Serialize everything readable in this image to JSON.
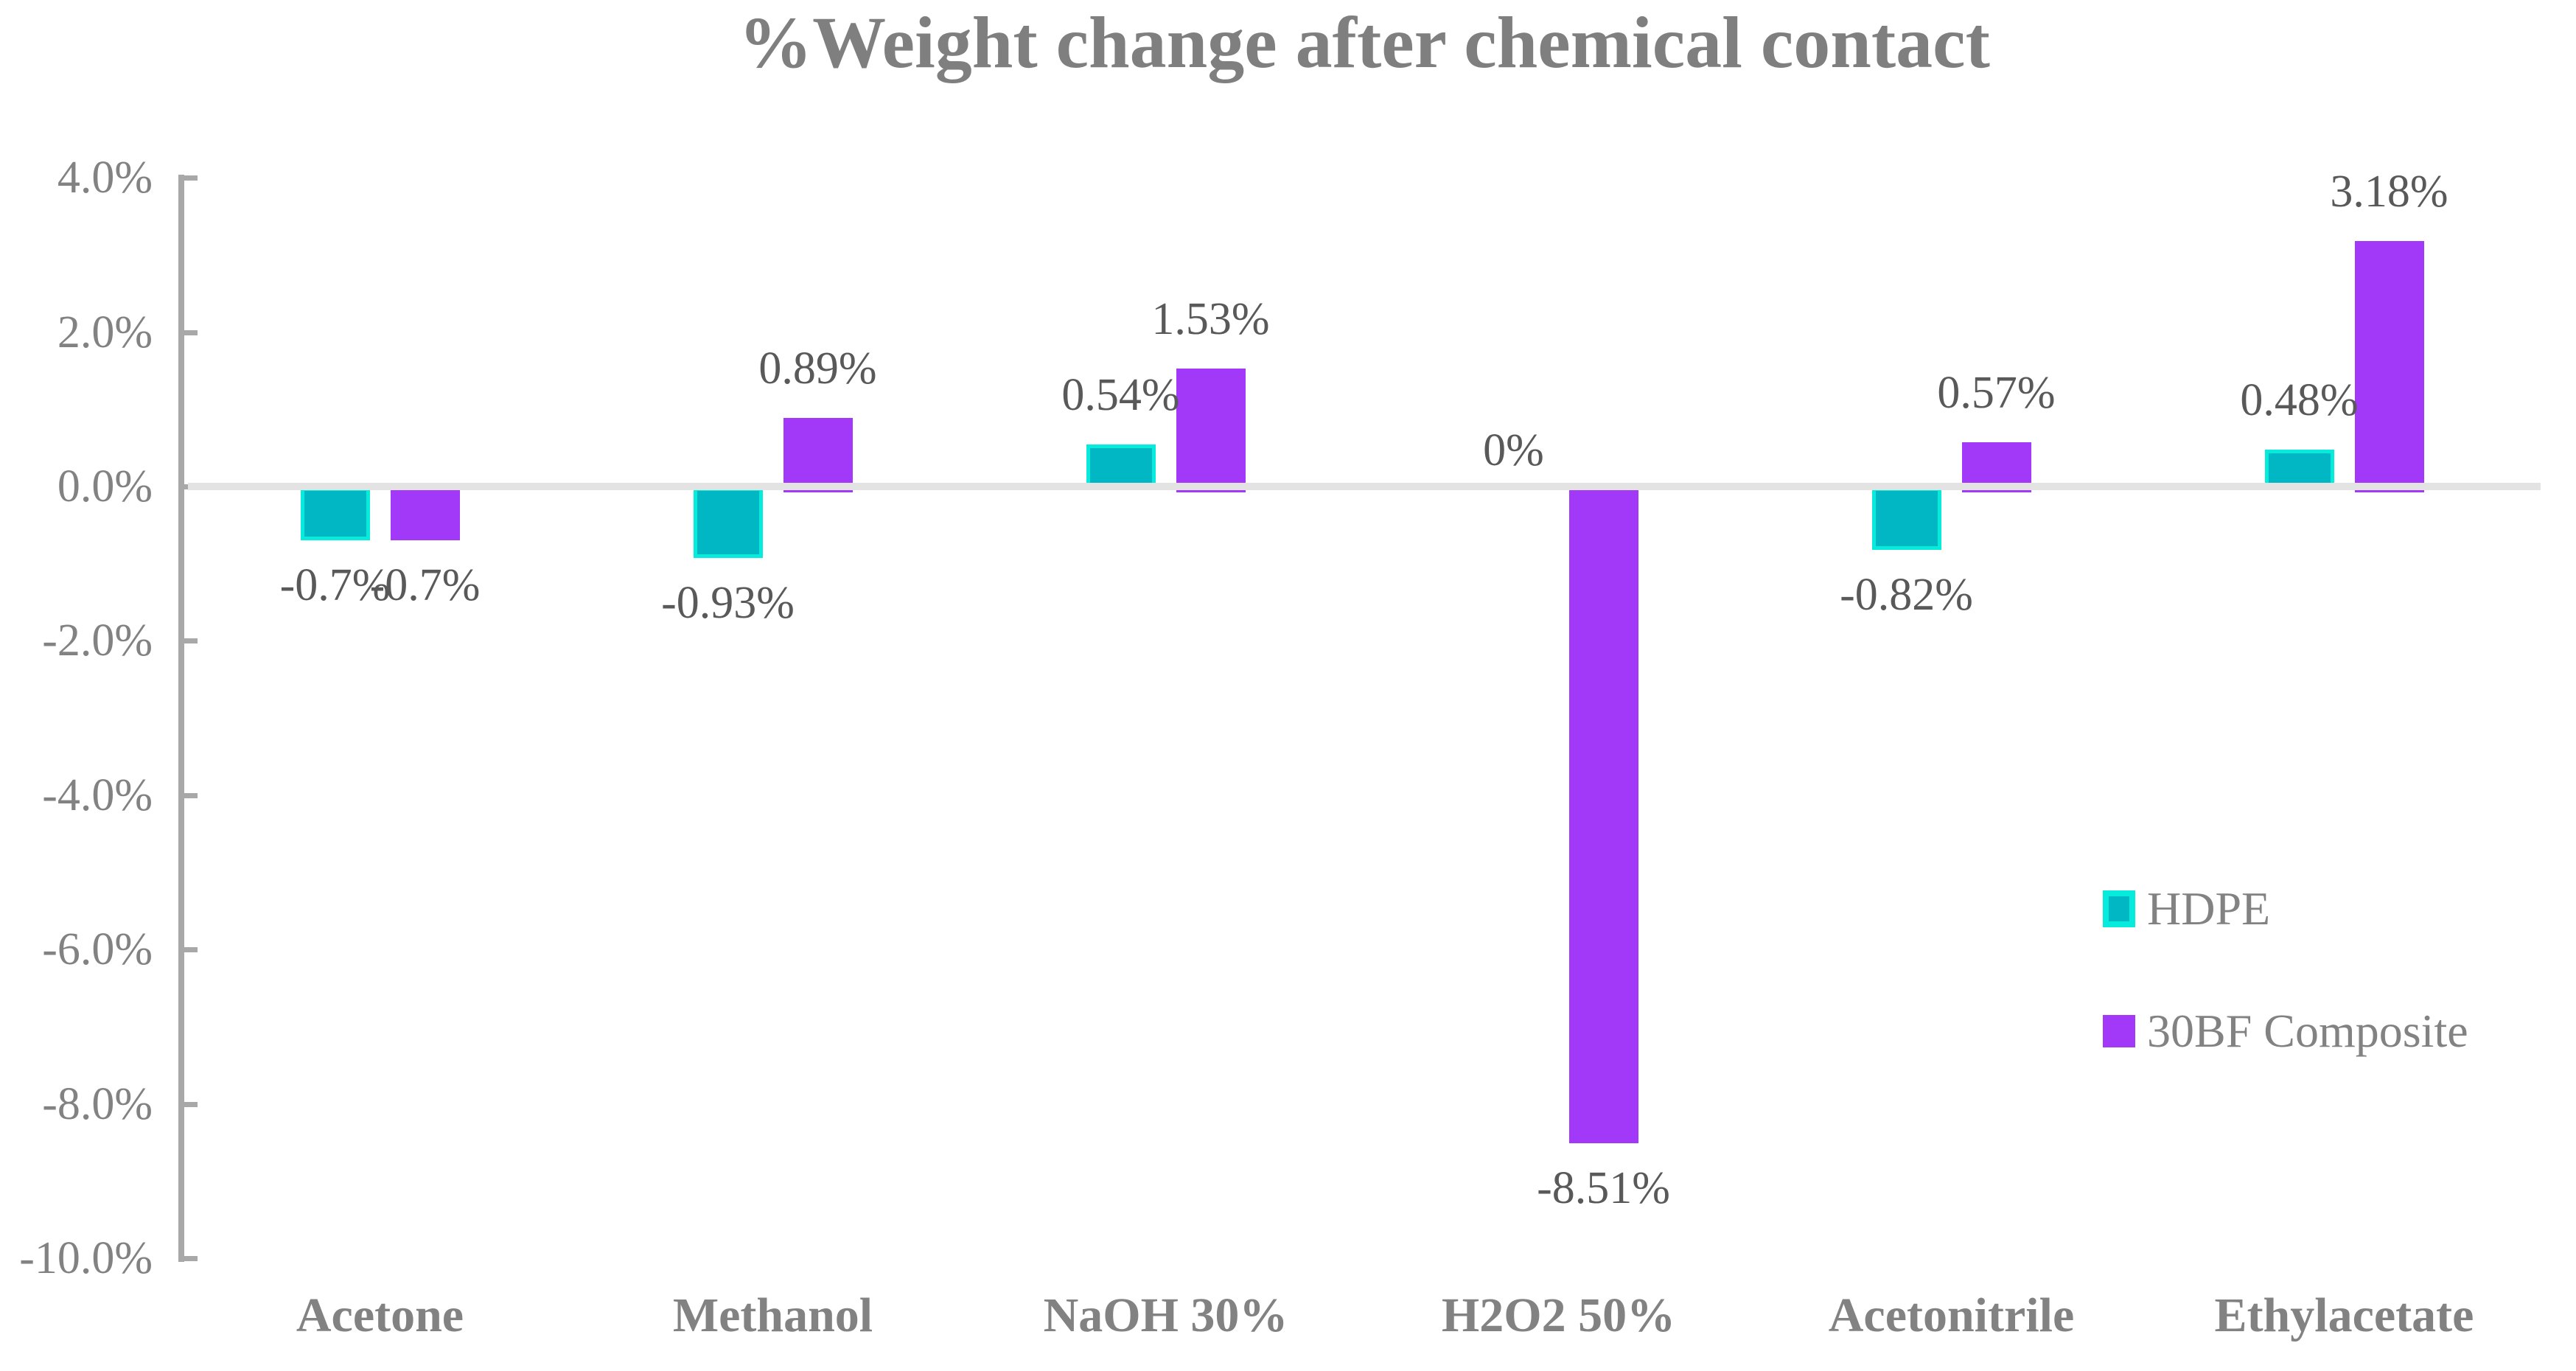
{
  "title": "%Weight change after chemical contact",
  "colors": {
    "hdpe_fill": "#00B7C3",
    "hdpe_border": "#06EBDC",
    "composite_fill": "#A238F8",
    "zero_gridline": "#E3E3E3",
    "axis": "#A8A8A8",
    "title_text": "#7F7F7F",
    "axis_text": "#828282",
    "data_label_text": "#595959"
  },
  "chart_data": {
    "type": "bar",
    "title": "%Weight change after chemical contact",
    "categories": [
      "Acetone",
      "Methanol",
      "NaOH 30%",
      "H2O2 50%",
      "Acetonitrile",
      "Ethylacetate"
    ],
    "series": [
      {
        "name": "HDPE",
        "values": [
          -0.7,
          -0.93,
          0.54,
          0,
          -0.82,
          0.48
        ],
        "labels": [
          "-0.7%",
          "-0.93%",
          "0.54%",
          "0%",
          "-0.82%",
          "0.48%"
        ],
        "color": "#00B7C3",
        "border_color": "#06EBDC"
      },
      {
        "name": "30BF Composite",
        "values": [
          -0.7,
          0.89,
          1.53,
          -8.51,
          0.57,
          3.18
        ],
        "labels": [
          "-0.7%",
          "0.89%",
          "1.53%",
          "-8.51%",
          "0.57%",
          "3.18%"
        ],
        "color": "#A238F8",
        "border_color": "#A238F8"
      }
    ],
    "yticks": {
      "labels": [
        "4.0%",
        "2.0%",
        "0.0%",
        "-2.0%",
        "-4.0%",
        "-6.0%",
        "-8.0%",
        "-10.0%"
      ],
      "values": [
        4,
        2,
        0,
        -2,
        -4,
        -6,
        -8,
        -10
      ]
    },
    "ylim": [
      -10,
      4
    ],
    "xlabel": "",
    "ylabel": "",
    "grid": "zero-line-only",
    "legend_position": "right-middle"
  }
}
